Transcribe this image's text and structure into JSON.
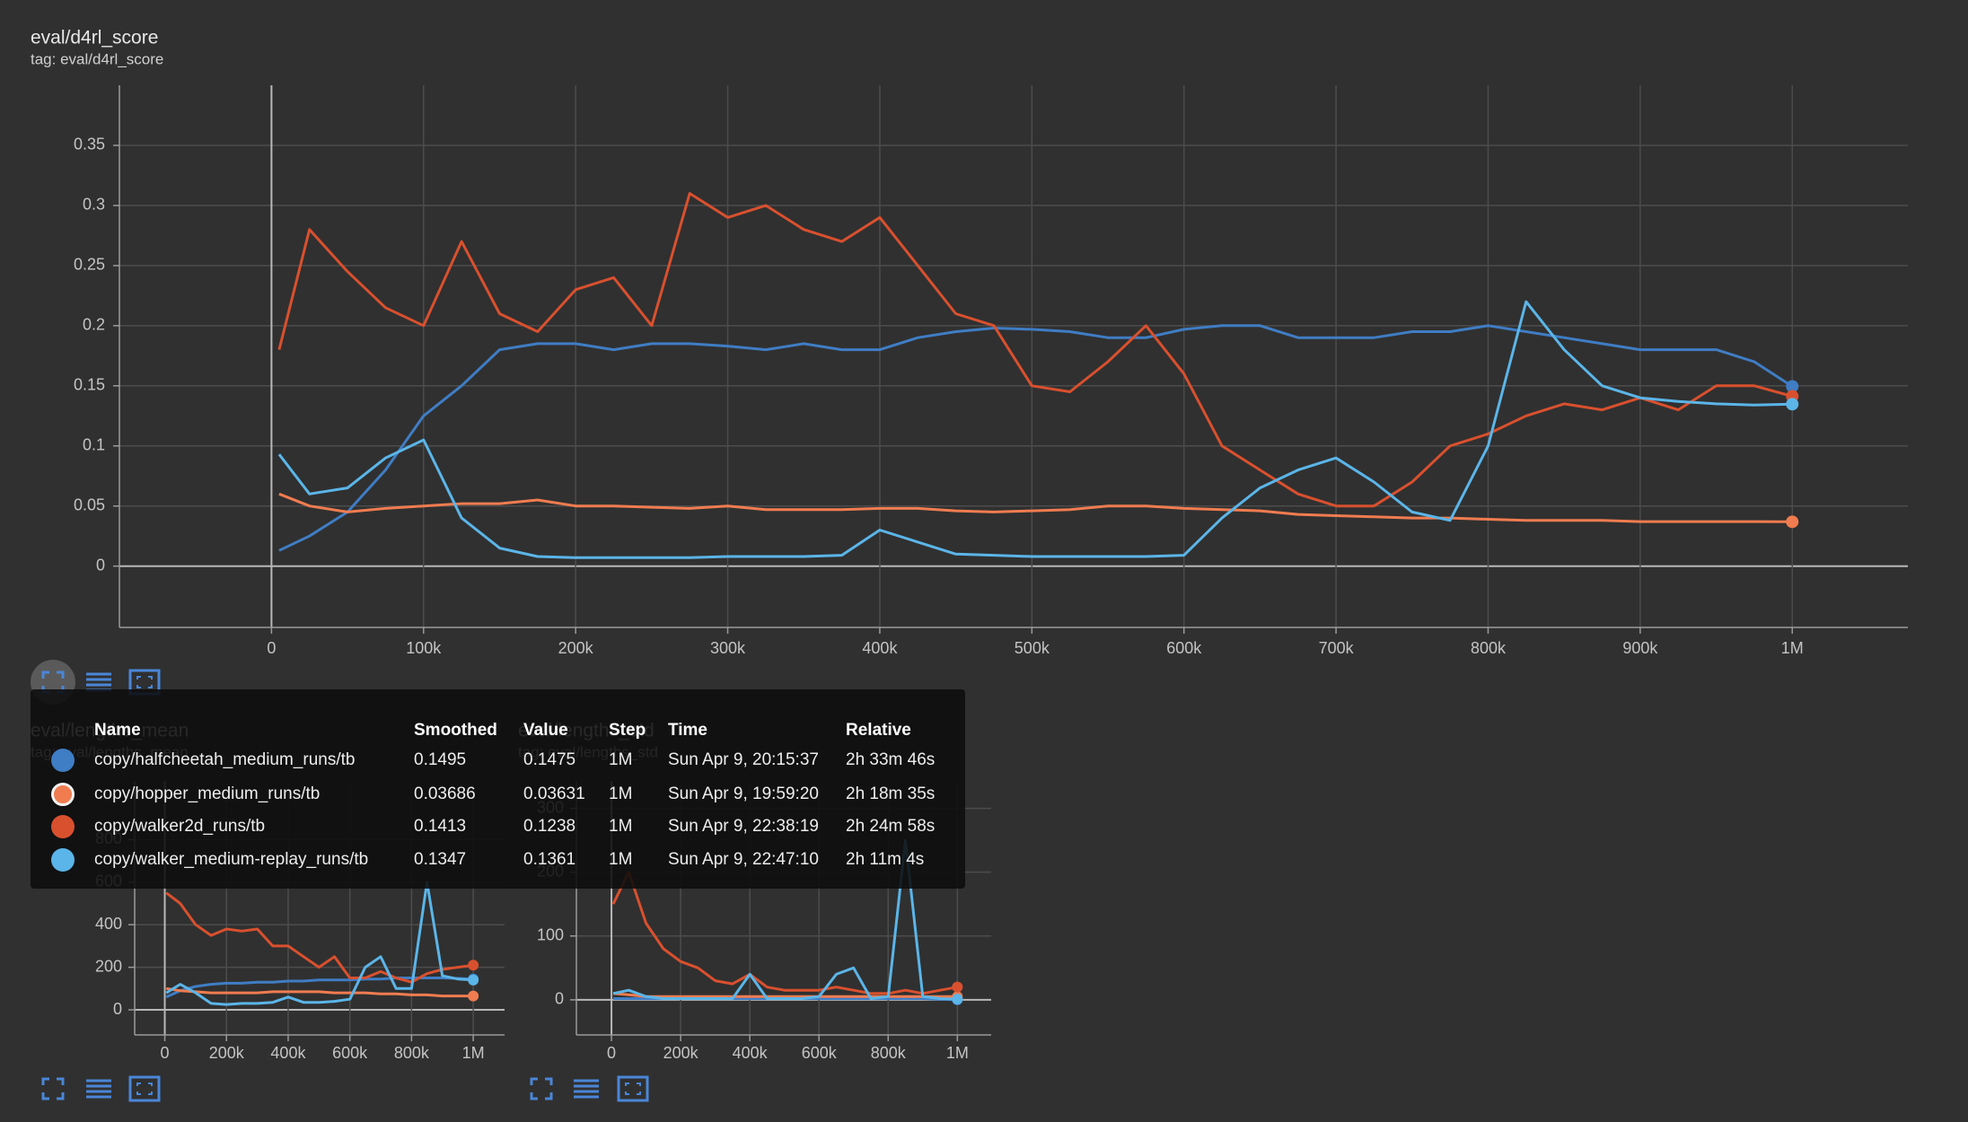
{
  "chart_data": [
    {
      "type": "line",
      "title": "eval/d4rl_score",
      "subtitle": "tag: eval/d4rl_score",
      "x": [
        5000,
        25000,
        50000,
        75000,
        100000,
        125000,
        150000,
        175000,
        200000,
        225000,
        250000,
        275000,
        300000,
        325000,
        350000,
        375000,
        400000,
        425000,
        450000,
        475000,
        500000,
        525000,
        550000,
        575000,
        600000,
        625000,
        650000,
        675000,
        700000,
        725000,
        750000,
        775000,
        800000,
        825000,
        850000,
        875000,
        900000,
        925000,
        950000,
        975000,
        1000000
      ],
      "series": [
        {
          "name": "copy/halfcheetah_medium_runs/tb",
          "color": "#3f7dc4",
          "values": [
            0.013,
            0.025,
            0.045,
            0.08,
            0.125,
            0.15,
            0.18,
            0.185,
            0.185,
            0.18,
            0.185,
            0.185,
            0.183,
            0.18,
            0.185,
            0.18,
            0.18,
            0.19,
            0.195,
            0.198,
            0.197,
            0.195,
            0.19,
            0.19,
            0.197,
            0.2,
            0.2,
            0.19,
            0.19,
            0.19,
            0.195,
            0.195,
            0.2,
            0.195,
            0.19,
            0.185,
            0.18,
            0.18,
            0.18,
            0.17,
            0.1495
          ]
        },
        {
          "name": "copy/hopper_medium_runs/tb",
          "color": "#f07c50",
          "values": [
            0.06,
            0.05,
            0.045,
            0.048,
            0.05,
            0.052,
            0.052,
            0.055,
            0.05,
            0.05,
            0.049,
            0.048,
            0.05,
            0.047,
            0.047,
            0.047,
            0.048,
            0.048,
            0.046,
            0.045,
            0.046,
            0.047,
            0.05,
            0.05,
            0.048,
            0.047,
            0.046,
            0.043,
            0.042,
            0.041,
            0.04,
            0.04,
            0.039,
            0.038,
            0.038,
            0.038,
            0.037,
            0.037,
            0.037,
            0.037,
            0.03686
          ]
        },
        {
          "name": "copy/walker2d_runs/tb",
          "color": "#d9502e",
          "values": [
            0.18,
            0.28,
            0.245,
            0.215,
            0.2,
            0.27,
            0.21,
            0.195,
            0.23,
            0.24,
            0.2,
            0.31,
            0.29,
            0.3,
            0.28,
            0.27,
            0.29,
            0.25,
            0.21,
            0.2,
            0.15,
            0.145,
            0.17,
            0.2,
            0.16,
            0.1,
            0.08,
            0.06,
            0.05,
            0.05,
            0.07,
            0.1,
            0.11,
            0.125,
            0.135,
            0.13,
            0.14,
            0.13,
            0.15,
            0.15,
            0.1413
          ]
        },
        {
          "name": "copy/walker_medium-replay_runs/tb",
          "color": "#5bb5e8",
          "values": [
            0.093,
            0.06,
            0.065,
            0.09,
            0.105,
            0.04,
            0.015,
            0.008,
            0.007,
            0.007,
            0.007,
            0.007,
            0.008,
            0.008,
            0.008,
            0.009,
            0.03,
            0.02,
            0.01,
            0.009,
            0.008,
            0.008,
            0.008,
            0.008,
            0.009,
            0.04,
            0.065,
            0.08,
            0.09,
            0.07,
            0.045,
            0.038,
            0.1,
            0.22,
            0.18,
            0.15,
            0.14,
            0.137,
            0.135,
            0.134,
            0.1347
          ]
        }
      ],
      "xlim": [
        -100000,
        1076000
      ],
      "ylim": [
        -0.051,
        0.4
      ],
      "xticks": [
        0,
        {
          "value": 100000,
          "label": "100k"
        },
        {
          "value": 200000,
          "label": "200k"
        },
        {
          "value": 300000,
          "label": "300k"
        },
        {
          "value": 400000,
          "label": "400k"
        },
        {
          "value": 500000,
          "label": "500k"
        },
        {
          "value": 600000,
          "label": "600k"
        },
        {
          "value": 700000,
          "label": "700k"
        },
        {
          "value": 800000,
          "label": "800k"
        },
        {
          "value": 900000,
          "label": "900k"
        },
        {
          "value": 1000000,
          "label": "1M"
        }
      ],
      "yticks": [
        0,
        0.05,
        0.1,
        0.15,
        0.2,
        0.25,
        0.3,
        0.35
      ],
      "grid": true
    },
    {
      "type": "line",
      "title": "eval/lengths_mean",
      "subtitle": "tag: eval/lengths_mean",
      "x": [
        5000,
        50000,
        100000,
        150000,
        200000,
        250000,
        300000,
        350000,
        400000,
        450000,
        500000,
        550000,
        600000,
        650000,
        700000,
        750000,
        800000,
        850000,
        900000,
        950000,
        1000000
      ],
      "series": [
        {
          "name": "copy/halfcheetah_medium_runs/tb",
          "color": "#3f7dc4",
          "values": [
            60,
            90,
            110,
            120,
            125,
            125,
            130,
            130,
            135,
            135,
            140,
            140,
            140,
            145,
            145,
            150,
            150,
            150,
            150,
            148,
            145
          ]
        },
        {
          "name": "copy/hopper_medium_runs/tb",
          "color": "#f07c50",
          "values": [
            100,
            90,
            85,
            80,
            80,
            80,
            80,
            85,
            85,
            85,
            85,
            80,
            80,
            80,
            75,
            75,
            70,
            70,
            65,
            65,
            65
          ]
        },
        {
          "name": "copy/walker2d_runs/tb",
          "color": "#d9502e",
          "values": [
            550,
            500,
            400,
            350,
            380,
            370,
            380,
            300,
            300,
            250,
            200,
            250,
            150,
            150,
            180,
            150,
            130,
            170,
            190,
            200,
            210
          ]
        },
        {
          "name": "copy/walker_medium-replay_runs/tb",
          "color": "#5bb5e8",
          "values": [
            80,
            120,
            80,
            30,
            25,
            30,
            30,
            35,
            60,
            35,
            35,
            40,
            50,
            200,
            250,
            100,
            100,
            600,
            160,
            145,
            140
          ]
        }
      ],
      "xlim": [
        -97600,
        1101600
      ],
      "ylim": [
        -118,
        1076
      ],
      "xticks": [
        0,
        {
          "value": 200000,
          "label": "200k"
        },
        {
          "value": 400000,
          "label": "400k"
        },
        {
          "value": 600000,
          "label": "600k"
        },
        {
          "value": 800000,
          "label": "800k"
        },
        {
          "value": 1000000,
          "label": "1M"
        }
      ],
      "yticks": [
        0,
        200,
        400,
        600,
        800
      ],
      "grid": true
    },
    {
      "type": "line",
      "title": "eval/lengths_std",
      "subtitle": "tag: eval/lengths_std",
      "x": [
        5000,
        50000,
        100000,
        150000,
        200000,
        250000,
        300000,
        350000,
        400000,
        450000,
        500000,
        550000,
        600000,
        650000,
        700000,
        750000,
        800000,
        850000,
        900000,
        950000,
        1000000
      ],
      "series": [
        {
          "name": "copy/halfcheetah_medium_runs/tb",
          "color": "#3f7dc4",
          "values": [
            2,
            2,
            2,
            2,
            2,
            2,
            2,
            2,
            2,
            2,
            2,
            2,
            2,
            2,
            2,
            2,
            2,
            2,
            2,
            1,
            0
          ]
        },
        {
          "name": "copy/hopper_medium_runs/tb",
          "color": "#f07c50",
          "values": [
            10,
            8,
            5,
            5,
            5,
            5,
            5,
            5,
            5,
            5,
            5,
            5,
            5,
            5,
            5,
            5,
            5,
            5,
            5,
            5,
            5
          ]
        },
        {
          "name": "copy/walker2d_runs/tb",
          "color": "#d9502e",
          "values": [
            150,
            200,
            120,
            80,
            60,
            50,
            30,
            25,
            40,
            20,
            15,
            15,
            15,
            20,
            15,
            10,
            10,
            15,
            10,
            15,
            20
          ]
        },
        {
          "name": "copy/walker_medium-replay_runs/tb",
          "color": "#5bb5e8",
          "values": [
            10,
            15,
            5,
            2,
            2,
            2,
            2,
            2,
            40,
            2,
            2,
            2,
            5,
            40,
            50,
            2,
            5,
            250,
            5,
            2,
            1
          ]
        }
      ],
      "xlim": [
        -101400,
        1097800
      ],
      "ylim": [
        -55,
        343
      ],
      "xticks": [
        0,
        {
          "value": 200000,
          "label": "200k"
        },
        {
          "value": 400000,
          "label": "400k"
        },
        {
          "value": 600000,
          "label": "600k"
        },
        {
          "value": 800000,
          "label": "800k"
        },
        {
          "value": 1000000,
          "label": "1M"
        }
      ],
      "yticks": [
        0,
        100,
        200,
        300
      ],
      "grid": true
    }
  ],
  "tooltip": {
    "headers": [
      "Name",
      "Smoothed",
      "Value",
      "Step",
      "Time",
      "Relative"
    ],
    "rows": [
      {
        "value": 0.1475,
        "step": "1M",
        "time": "Sun Apr 9, 20:15:37",
        "relative": "2h 33m 46s"
      },
      {
        "value": 0.03631,
        "step": "1M",
        "time": "Sun Apr 9, 19:59:20",
        "relative": "2h 18m 35s"
      },
      {
        "value": 0.1238,
        "step": "1M",
        "time": "Sun Apr 9, 22:38:19",
        "relative": "2h 24m 58s"
      },
      {
        "value": 0.1361,
        "step": "1M",
        "time": "Sun Apr 9, 22:47:10",
        "relative": "2h 11m 4s"
      }
    ]
  }
}
